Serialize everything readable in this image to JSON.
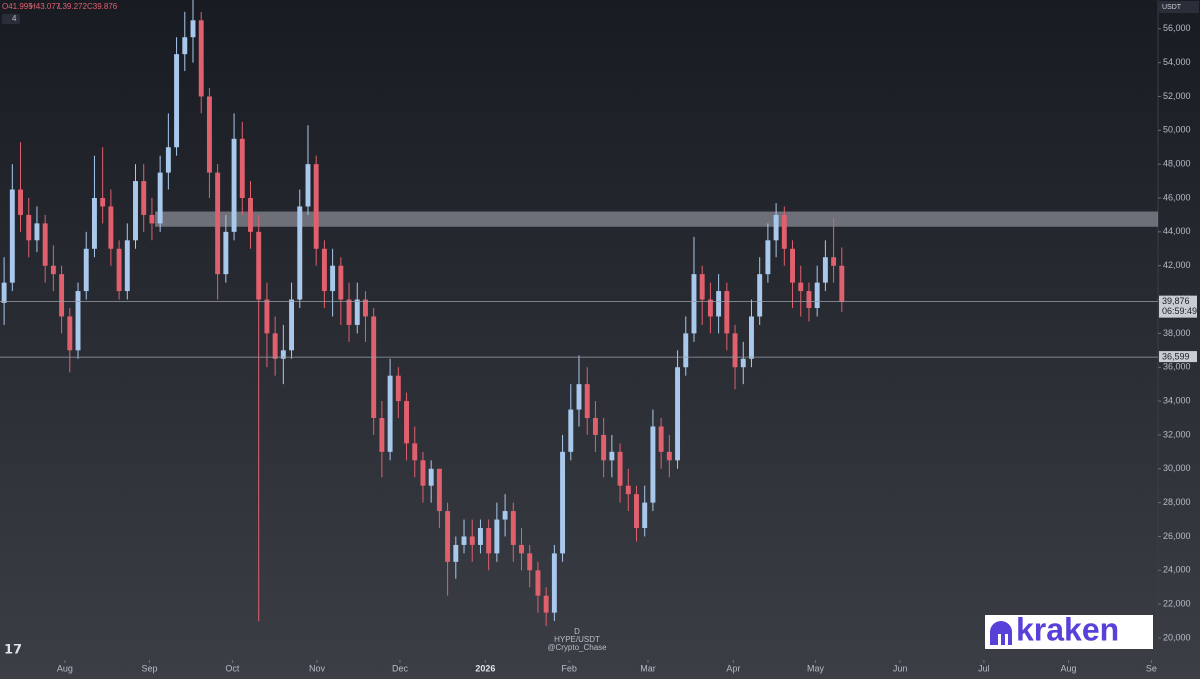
{
  "chart_data": {
    "type": "candlestick",
    "symbol": "HYPE/USDT",
    "interval": "D",
    "author": "@Crypto_Chase",
    "currency": "USDT",
    "ohlc_header": [
      "O41.995",
      "H43.077",
      "L39.272",
      "C39.876"
    ],
    "indicator_count": "4",
    "brand": "kraken",
    "categories": [
      null,
      null,
      null,
      null,
      null,
      null,
      null,
      null,
      null,
      null,
      null,
      null,
      null,
      null,
      null,
      null,
      null,
      null,
      null,
      null,
      null,
      null,
      null,
      null,
      null,
      null,
      null,
      null,
      null,
      null,
      null,
      null,
      null,
      null,
      null,
      null,
      null,
      null,
      null,
      null,
      null,
      null,
      null,
      null,
      null,
      null,
      null,
      null,
      null,
      null,
      null,
      null,
      null,
      null,
      null,
      null,
      null,
      null,
      null,
      null,
      null,
      null,
      null,
      null,
      null,
      null,
      null,
      null,
      null,
      null,
      null,
      null,
      null,
      null,
      null,
      null,
      null,
      null,
      null,
      null,
      null,
      null,
      null,
      null,
      null,
      null,
      null,
      null,
      null,
      null,
      null,
      null,
      null,
      null,
      null,
      null,
      null,
      null,
      null,
      null,
      null,
      null,
      null
    ],
    "up_color": "#a9c9ec",
    "down_color": "#e0606e",
    "open": [
      39800,
      41000,
      46500,
      45000,
      43500,
      44500,
      42000,
      41500,
      39000,
      37000,
      40500,
      43000,
      46000,
      45500,
      43000,
      40500,
      43500,
      47000,
      45000,
      44500,
      47500,
      49000,
      54500,
      55500,
      56500,
      52000,
      47500,
      41500,
      44000,
      49500,
      46000,
      44000,
      40000,
      38000,
      36500,
      37000,
      40000,
      45500,
      48000,
      43000,
      40500,
      42000,
      40000,
      38500,
      40000,
      39000,
      33000,
      31000,
      35500,
      34000,
      31500,
      30500,
      29000,
      30000,
      27500,
      24500,
      25500,
      26000,
      25500,
      26500,
      25000,
      27000,
      27500,
      25500,
      25000,
      24000,
      22500,
      21500,
      25000,
      31000,
      33500,
      35000,
      33000,
      32000,
      30500,
      31000,
      29000,
      28500,
      26500,
      28000,
      32500,
      31000,
      30500,
      36000,
      38000,
      41500,
      40000,
      39000,
      40500,
      38000,
      36000,
      36500,
      39000,
      41500,
      43500,
      45000,
      43000,
      41000,
      40500,
      39500,
      41000,
      42500,
      41995
    ],
    "high": [
      42500,
      48000,
      49300,
      46000,
      45500,
      45000,
      43200,
      42000,
      39500,
      41000,
      44000,
      48500,
      49000,
      46500,
      43500,
      44500,
      48000,
      48000,
      46000,
      48500,
      51000,
      55500,
      57000,
      57700,
      57000,
      52500,
      48000,
      45000,
      51000,
      50500,
      47000,
      45000,
      41000,
      39000,
      38500,
      41000,
      46500,
      50300,
      48500,
      43500,
      43000,
      42500,
      41000,
      41000,
      40500,
      39500,
      34000,
      36500,
      36000,
      34500,
      32500,
      31000,
      30500,
      30000,
      28000,
      26000,
      27000,
      27000,
      27000,
      27000,
      28000,
      28500,
      28000,
      26500,
      25500,
      24500,
      23000,
      25500,
      32000,
      35000,
      36700,
      36000,
      34000,
      33000,
      32000,
      31500,
      30000,
      29000,
      29000,
      33500,
      33000,
      32000,
      37000,
      39000,
      43700,
      42000,
      41000,
      41500,
      41000,
      38500,
      37500,
      40000,
      42500,
      44500,
      45700,
      45500,
      43500,
      42000,
      41000,
      42000,
      43500,
      44800,
      43077
    ],
    "low": [
      38500,
      40500,
      44000,
      42500,
      42800,
      41000,
      40500,
      38000,
      35700,
      36500,
      40000,
      42500,
      44500,
      42000,
      40000,
      40000,
      43000,
      44000,
      43500,
      44000,
      46500,
      48500,
      53500,
      54000,
      51000,
      46000,
      40000,
      41000,
      43500,
      45000,
      43000,
      21000,
      36000,
      35500,
      35000,
      36500,
      39500,
      45000,
      42000,
      39500,
      39000,
      38500,
      37500,
      38000,
      37500,
      32000,
      29500,
      30500,
      33000,
      30500,
      29500,
      28000,
      28000,
      26500,
      22500,
      23500,
      25000,
      24500,
      25000,
      24000,
      24500,
      26000,
      24500,
      24000,
      23000,
      21500,
      20700,
      21000,
      24500,
      30500,
      32500,
      32000,
      31000,
      29500,
      29500,
      28000,
      27500,
      25700,
      26000,
      27500,
      30000,
      29500,
      30000,
      35500,
      37500,
      38500,
      38000,
      38000,
      37000,
      34700,
      35000,
      36000,
      38500,
      41000,
      42500,
      42000,
      39500,
      39000,
      38700,
      39000,
      40500,
      41000,
      39272
    ],
    "close": [
      41000,
      46500,
      45000,
      43500,
      44500,
      42000,
      41500,
      39000,
      37000,
      40500,
      43000,
      46000,
      45500,
      43000,
      40500,
      43500,
      47000,
      45000,
      44500,
      47500,
      49000,
      54500,
      55500,
      56500,
      52000,
      47500,
      41500,
      44000,
      49500,
      46000,
      44000,
      40000,
      38000,
      36500,
      37000,
      40000,
      45500,
      48000,
      43000,
      40500,
      42000,
      40000,
      38500,
      40000,
      39000,
      33000,
      31000,
      35500,
      34000,
      31500,
      30500,
      29000,
      30000,
      27500,
      24500,
      25500,
      26000,
      25500,
      26500,
      25000,
      27000,
      27500,
      25500,
      25000,
      24000,
      22500,
      21500,
      25000,
      31000,
      33500,
      35000,
      33000,
      32000,
      30500,
      31000,
      29000,
      28500,
      26500,
      28000,
      32500,
      31000,
      30500,
      36000,
      38000,
      41500,
      40000,
      39000,
      40500,
      38000,
      36000,
      36500,
      39000,
      41500,
      43500,
      45000,
      43000,
      41000,
      40500,
      39500,
      41000,
      42500,
      41995,
      39876
    ],
    "xlim": [
      -0.5,
      140.5
    ],
    "xticks": [
      {
        "value": 7.4,
        "label": "Aug"
      },
      {
        "value": 17.7,
        "label": "Sep"
      },
      {
        "value": 27.8,
        "label": "Oct"
      },
      {
        "value": 38.1,
        "label": "Nov"
      },
      {
        "value": 48.2,
        "label": "Dec"
      },
      {
        "value": 58.6,
        "label": "2026"
      },
      {
        "value": 68.8,
        "label": "Feb"
      },
      {
        "value": 78.4,
        "label": "Mar"
      },
      {
        "value": 88.8,
        "label": "Apr"
      },
      {
        "value": 98.8,
        "label": "May"
      },
      {
        "value": 109.1,
        "label": "Jun"
      },
      {
        "value": 119.3,
        "label": "Jul"
      },
      {
        "value": 129.6,
        "label": "Aug"
      },
      {
        "value": 139.7,
        "label": "Se"
      }
    ],
    "ylim": [
      18700,
      57700
    ],
    "yticks": [
      {
        "value": 20000,
        "label": "20,000"
      },
      {
        "value": 22000,
        "label": "22,000"
      },
      {
        "value": 24000,
        "label": "24,000"
      },
      {
        "value": 26000,
        "label": "26,000"
      },
      {
        "value": 28000,
        "label": "28,000"
      },
      {
        "value": 30000,
        "label": "30,000"
      },
      {
        "value": 32000,
        "label": "32,000"
      },
      {
        "value": 34000,
        "label": "34,000"
      },
      {
        "value": 36000,
        "label": "36,000"
      },
      {
        "value": 38000,
        "label": "38,000"
      },
      {
        "value": 40000,
        "label": "40,000"
      },
      {
        "value": 42000,
        "label": "42,000"
      },
      {
        "value": 44000,
        "label": "44,000"
      },
      {
        "value": 46000,
        "label": "46,000"
      },
      {
        "value": 48000,
        "label": "48,000"
      },
      {
        "value": 50000,
        "label": "50,000"
      },
      {
        "value": 52000,
        "label": "52,000"
      },
      {
        "value": 54000,
        "label": "54,000"
      },
      {
        "value": 56000,
        "label": "56,000"
      }
    ],
    "price_lines": [
      {
        "value": 39876,
        "label": "39,876",
        "countdown": "06:59:49"
      },
      {
        "value": 36599,
        "label": "36,599"
      }
    ],
    "zone": {
      "from": 44300,
      "to": 45200
    }
  }
}
